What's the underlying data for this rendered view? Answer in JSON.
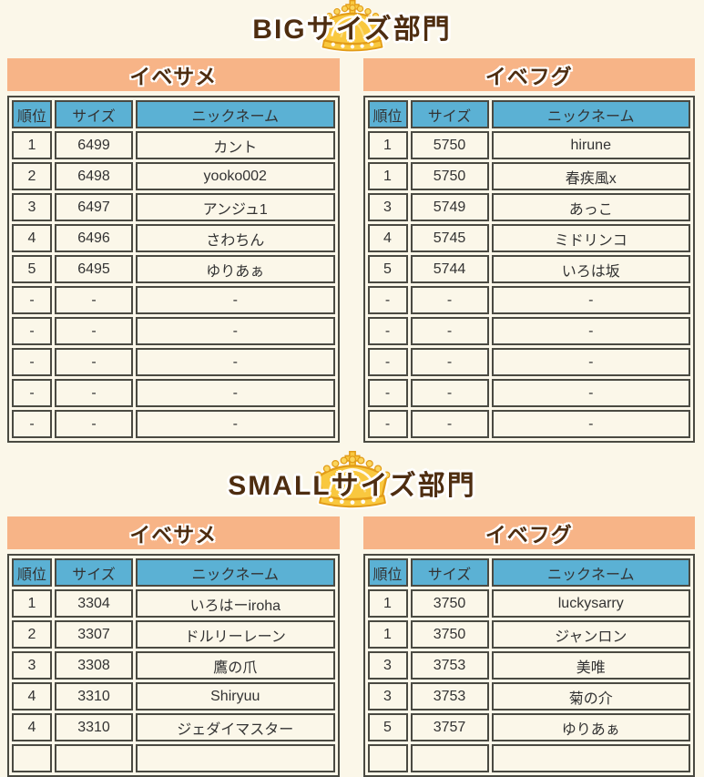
{
  "colors": {
    "page_background": "#FBF7E9",
    "band_orange": "#F7B487",
    "header_blue": "#5BB1D4",
    "border_dark": "#4A4A42",
    "title_brown": "#4E2D10",
    "crown_gold": "#F9C83F"
  },
  "sections": [
    {
      "title": "BIGサイズ部門",
      "tables": [
        {
          "title": "イベサメ",
          "headers": [
            "順位",
            "サイズ",
            "ニックネーム"
          ],
          "rows": [
            [
              "1",
              "6499",
              "カント"
            ],
            [
              "2",
              "6498",
              "yooko002"
            ],
            [
              "3",
              "6497",
              "アンジュ1"
            ],
            [
              "4",
              "6496",
              "さわちん"
            ],
            [
              "5",
              "6495",
              "ゆりあぁ"
            ],
            [
              "-",
              "-",
              "-"
            ],
            [
              "-",
              "-",
              "-"
            ],
            [
              "-",
              "-",
              "-"
            ],
            [
              "-",
              "-",
              "-"
            ],
            [
              "-",
              "-",
              "-"
            ]
          ]
        },
        {
          "title": "イベフグ",
          "headers": [
            "順位",
            "サイズ",
            "ニックネーム"
          ],
          "rows": [
            [
              "1",
              "5750",
              "hirune"
            ],
            [
              "1",
              "5750",
              "春疾風x"
            ],
            [
              "3",
              "5749",
              "あっこ"
            ],
            [
              "4",
              "5745",
              "ミドリンコ"
            ],
            [
              "5",
              "5744",
              "いろは坂"
            ],
            [
              "-",
              "-",
              "-"
            ],
            [
              "-",
              "-",
              "-"
            ],
            [
              "-",
              "-",
              "-"
            ],
            [
              "-",
              "-",
              "-"
            ],
            [
              "-",
              "-",
              "-"
            ]
          ]
        }
      ]
    },
    {
      "title": "SMALLサイズ部門",
      "tables": [
        {
          "title": "イベサメ",
          "headers": [
            "順位",
            "サイズ",
            "ニックネーム"
          ],
          "rows": [
            [
              "1",
              "3304",
              "いろはーiroha"
            ],
            [
              "2",
              "3307",
              "ドルリーレーン"
            ],
            [
              "3",
              "3308",
              "鷹の爪"
            ],
            [
              "4",
              "3310",
              "Shiryuu"
            ],
            [
              "4",
              "3310",
              "ジェダイマスター"
            ],
            [
              "",
              "",
              ""
            ]
          ]
        },
        {
          "title": "イベフグ",
          "headers": [
            "順位",
            "サイズ",
            "ニックネーム"
          ],
          "rows": [
            [
              "1",
              "3750",
              "luckysarry"
            ],
            [
              "1",
              "3750",
              "ジャンロン"
            ],
            [
              "3",
              "3753",
              "美唯"
            ],
            [
              "3",
              "3753",
              "菊の介"
            ],
            [
              "5",
              "3757",
              "ゆりあぁ"
            ],
            [
              "",
              "",
              ""
            ]
          ]
        }
      ]
    }
  ]
}
